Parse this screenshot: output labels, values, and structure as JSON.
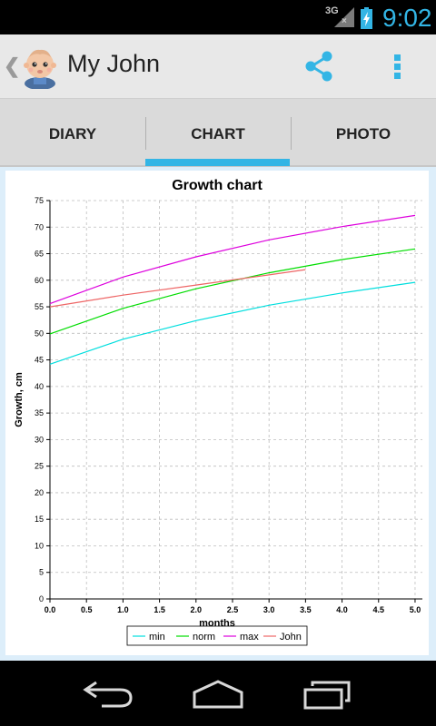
{
  "status_bar": {
    "network": "3G",
    "network_sub": "×",
    "time": "9:02"
  },
  "action_bar": {
    "up_glyph": "❮",
    "title": "My John"
  },
  "tabs": [
    {
      "label": "DIARY",
      "selected": false
    },
    {
      "label": "CHART",
      "selected": true
    },
    {
      "label": "PHOTO",
      "selected": false
    }
  ],
  "colors": {
    "accent": "#33b5e5",
    "min": "#00dede",
    "norm": "#00dd00",
    "max": "#dd00dd",
    "john": "#ee6666"
  },
  "icons": {
    "share": "share-icon",
    "overflow": "overflow-menu-icon",
    "back": "back-icon",
    "home": "home-icon",
    "recents": "recents-icon"
  },
  "chart_data": {
    "type": "line",
    "title": "Growth chart",
    "xlabel": "months",
    "ylabel": "Growth, cm",
    "xlim": [
      0,
      5.1
    ],
    "ylim": [
      0,
      75
    ],
    "xticks": [
      "0.0",
      "0.5",
      "1.0",
      "1.5",
      "2.0",
      "2.5",
      "3.0",
      "3.5",
      "4.0",
      "4.5",
      "5.0"
    ],
    "yticks": [
      "0",
      "5",
      "10",
      "15",
      "20",
      "25",
      "30",
      "35",
      "40",
      "45",
      "50",
      "55",
      "60",
      "65",
      "70",
      "75"
    ],
    "grid": true,
    "legend_position": "bottom-center",
    "series": [
      {
        "name": "min",
        "x": [
          0,
          1,
          2,
          3,
          4,
          5
        ],
        "values": [
          44.2,
          48.9,
          52.4,
          55.3,
          57.6,
          59.6
        ]
      },
      {
        "name": "norm",
        "x": [
          0,
          1,
          2,
          3,
          4,
          5
        ],
        "values": [
          49.9,
          54.7,
          58.4,
          61.4,
          63.9,
          65.9
        ]
      },
      {
        "name": "max",
        "x": [
          0,
          1,
          2,
          3,
          4,
          5
        ],
        "values": [
          55.6,
          60.6,
          64.4,
          67.6,
          70.1,
          72.2
        ]
      },
      {
        "name": "John",
        "x": [
          0,
          1,
          2,
          3,
          3.5
        ],
        "values": [
          55.0,
          57.2,
          59.1,
          61.0,
          62.0
        ]
      }
    ]
  }
}
